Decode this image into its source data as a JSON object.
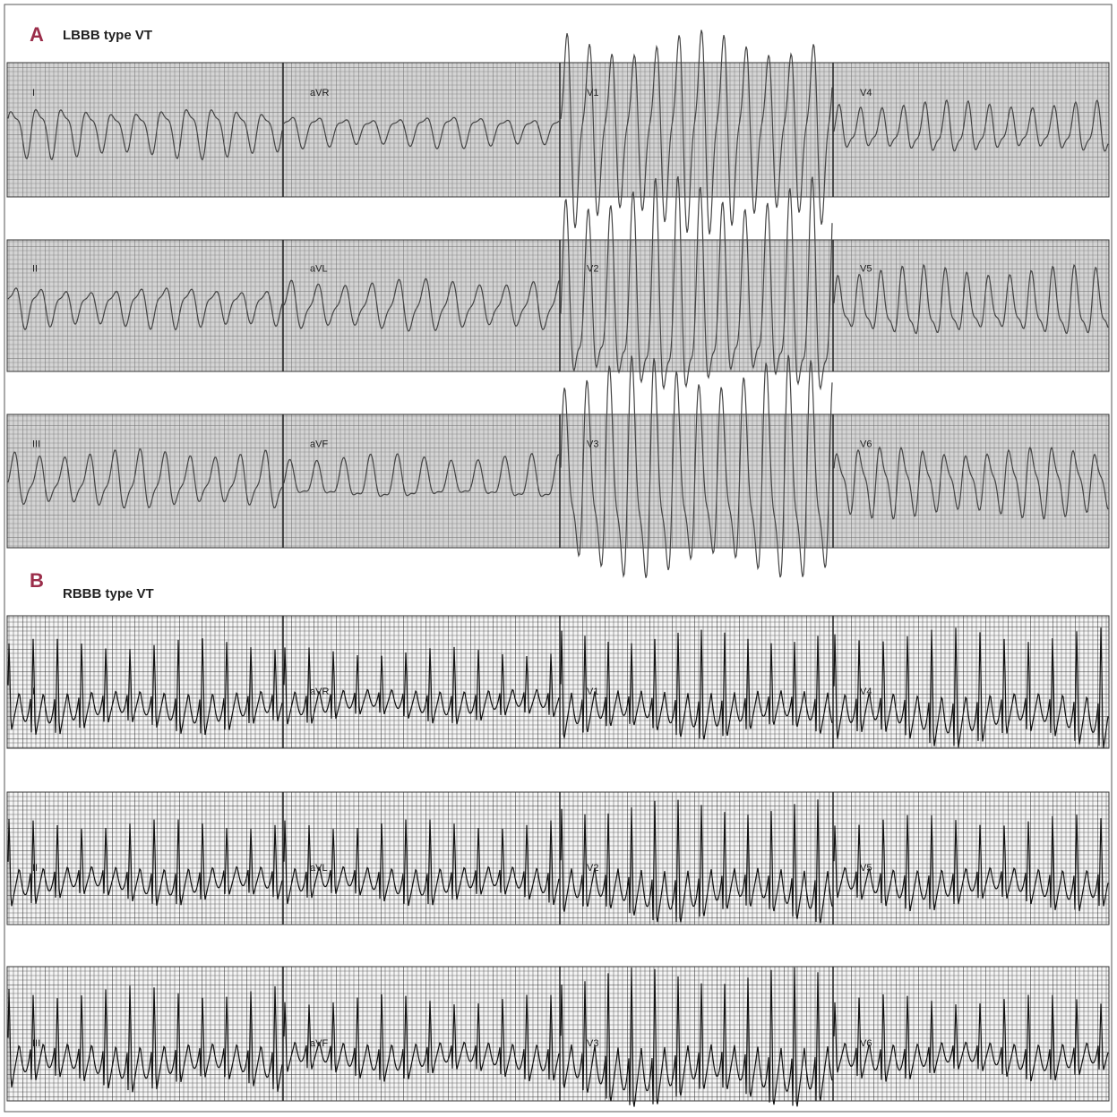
{
  "panels": [
    {
      "letter": "A",
      "title": "LBBB type VT",
      "rows": [
        [
          "I",
          "aVR",
          "V1",
          "V4"
        ],
        [
          "II",
          "aVL",
          "V2",
          "V5"
        ],
        [
          "III",
          "aVF",
          "V3",
          "V6"
        ]
      ]
    },
    {
      "letter": "B",
      "title": "RBBB type VT",
      "rows": [
        [
          "I",
          "aVR",
          "V1",
          "V4"
        ],
        [
          "II",
          "aVL",
          "V2",
          "V5"
        ],
        [
          "III",
          "aVF",
          "V3",
          "V6"
        ]
      ]
    }
  ]
}
